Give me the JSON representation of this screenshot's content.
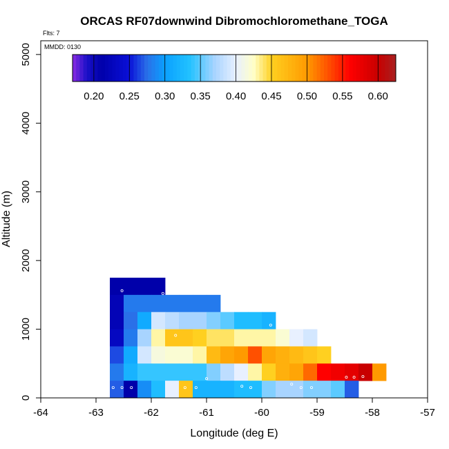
{
  "chart_data": {
    "type": "heatmap",
    "title": "ORCAS RF07downwind Dibromochloromethane_TOGA",
    "subtitle_flights": "Flts: 7",
    "subtitle_date": "MMDD: 0130",
    "xlabel": "Longitude (deg E)",
    "ylabel": "Altitude (m)",
    "xlim": [
      -64,
      -57
    ],
    "ylim": [
      0,
      5200
    ],
    "x_ticks": [
      -64,
      -63,
      -62,
      -61,
      -60,
      -59,
      -58,
      -57
    ],
    "y_ticks": [
      0,
      1000,
      2000,
      3000,
      4000,
      5000
    ],
    "colorbar": {
      "range": [
        0.17,
        0.625
      ],
      "ticks": [
        0.2,
        0.25,
        0.3,
        0.35,
        0.4,
        0.45,
        0.5,
        0.55,
        0.6
      ],
      "tick_labels": [
        "0.20",
        "0.25",
        "0.30",
        "0.35",
        "0.40",
        "0.45",
        "0.50",
        "0.55",
        "0.60"
      ],
      "stops": [
        {
          "v": 0.17,
          "c": "#8a2be2"
        },
        {
          "v": 0.19,
          "c": "#1a10c8"
        },
        {
          "v": 0.21,
          "c": "#0000aa"
        },
        {
          "v": 0.25,
          "c": "#0a10d8"
        },
        {
          "v": 0.275,
          "c": "#2a70e8"
        },
        {
          "v": 0.3,
          "c": "#0aa0ff"
        },
        {
          "v": 0.335,
          "c": "#22c2ff"
        },
        {
          "v": 0.37,
          "c": "#a8d4ff"
        },
        {
          "v": 0.4,
          "c": "#e8f0ff"
        },
        {
          "v": 0.425,
          "c": "#ffffc8"
        },
        {
          "v": 0.45,
          "c": "#ffd020"
        },
        {
          "v": 0.5,
          "c": "#ff9a00"
        },
        {
          "v": 0.53,
          "c": "#ff5000"
        },
        {
          "v": 0.56,
          "c": "#ff0000"
        },
        {
          "v": 0.6,
          "c": "#c80000"
        },
        {
          "v": 0.625,
          "c": "#a82020"
        }
      ]
    },
    "cell_size": {
      "dlon": 0.25,
      "dalt": 250
    },
    "rows": [
      {
        "alt_bottom": 1500,
        "lon_start": -62.75,
        "values": [
          0.21,
          0.21,
          0.21,
          0.21
        ]
      },
      {
        "alt_bottom": 1250,
        "lon_start": -62.75,
        "values": [
          0.22,
          0.28,
          0.28,
          0.28,
          0.28,
          0.28,
          0.28,
          0.28
        ]
      },
      {
        "alt_bottom": 1000,
        "lon_start": -62.75,
        "values": [
          0.22,
          0.275,
          0.31,
          0.39,
          0.38,
          0.37,
          0.37,
          0.36,
          0.35,
          0.33,
          0.33,
          0.32
        ]
      },
      {
        "alt_bottom": 750,
        "lon_start": -62.75,
        "values": [
          0.23,
          0.28,
          0.37,
          0.43,
          0.46,
          0.46,
          0.45,
          0.44,
          0.44,
          0.43,
          0.43,
          0.43,
          0.42,
          0.4,
          0.39
        ]
      },
      {
        "alt_bottom": 500,
        "lon_start": -62.75,
        "values": [
          0.265,
          0.31,
          0.39,
          0.415,
          0.42,
          0.42,
          0.43,
          0.47,
          0.49,
          0.5,
          0.53,
          0.49,
          0.48,
          0.47,
          0.46,
          0.45
        ]
      },
      {
        "alt_bottom": 250,
        "lon_start": -62.75,
        "values": [
          0.28,
          0.32,
          0.34,
          0.34,
          0.34,
          0.34,
          0.34,
          0.36,
          0.38,
          0.4,
          0.43,
          0.45,
          0.48,
          0.49,
          0.52,
          0.56,
          0.57,
          0.58,
          0.6,
          0.5
        ]
      },
      {
        "alt_bottom": 0,
        "lon_start": -62.75,
        "values": [
          0.27,
          0.21,
          0.29,
          0.33,
          0.4,
          0.46,
          0.32,
          0.32,
          0.32,
          0.33,
          0.33,
          0.36,
          0.37,
          0.37,
          0.36,
          0.36,
          0.35,
          0.27
        ]
      }
    ],
    "sample_points": [
      [
        -62.69,
        150
      ],
      [
        -62.53,
        150
      ],
      [
        -62.36,
        150
      ],
      [
        -61.39,
        150
      ],
      [
        -61.19,
        150
      ],
      [
        -60.36,
        170
      ],
      [
        -60.2,
        150
      ],
      [
        -59.46,
        200
      ],
      [
        -59.29,
        150
      ],
      [
        -59.1,
        150
      ],
      [
        -58.47,
        300
      ],
      [
        -58.33,
        300
      ],
      [
        -58.17,
        310
      ],
      [
        -61.0,
        280
      ],
      [
        -62.53,
        1560
      ],
      [
        -61.79,
        1520
      ],
      [
        -61.56,
        910
      ],
      [
        -59.84,
        1060
      ]
    ]
  }
}
